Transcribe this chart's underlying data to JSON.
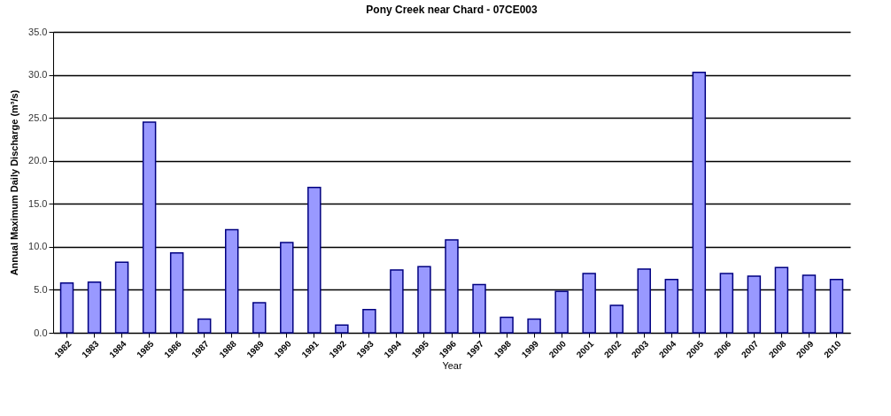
{
  "chart_data": {
    "type": "bar",
    "title": "Pony Creek near Chard - 07CE003",
    "xlabel": "Year",
    "ylabel": "Annual Maximum Daily Discharge (m³/s)",
    "categories": [
      "1982",
      "1983",
      "1984",
      "1985",
      "1986",
      "1987",
      "1988",
      "1989",
      "1990",
      "1991",
      "1992",
      "1993",
      "1994",
      "1995",
      "1996",
      "1997",
      "1998",
      "1999",
      "2000",
      "2001",
      "2002",
      "2003",
      "2004",
      "2005",
      "2006",
      "2007",
      "2008",
      "2009",
      "2010"
    ],
    "values": [
      5.8,
      5.9,
      8.2,
      24.5,
      9.3,
      1.6,
      12.0,
      3.5,
      10.5,
      16.9,
      0.9,
      2.7,
      7.3,
      7.7,
      10.8,
      5.6,
      1.8,
      1.6,
      4.8,
      6.9,
      3.2,
      7.4,
      6.2,
      30.3,
      6.9,
      6.6,
      7.6,
      6.7,
      6.2
    ],
    "color": "#9999ff",
    "ylim": [
      0,
      35
    ],
    "yticks": [
      {
        "value": 0,
        "label": "0.0"
      },
      {
        "value": 5,
        "label": "5.0"
      },
      {
        "value": 10,
        "label": "10.0"
      },
      {
        "value": 15,
        "label": "15.0"
      },
      {
        "value": 20,
        "label": "20.0"
      },
      {
        "value": 25,
        "label": "25.0"
      },
      {
        "value": 30,
        "label": "30.0"
      },
      {
        "value": 35,
        "label": "35.0"
      }
    ],
    "grid": "y"
  }
}
